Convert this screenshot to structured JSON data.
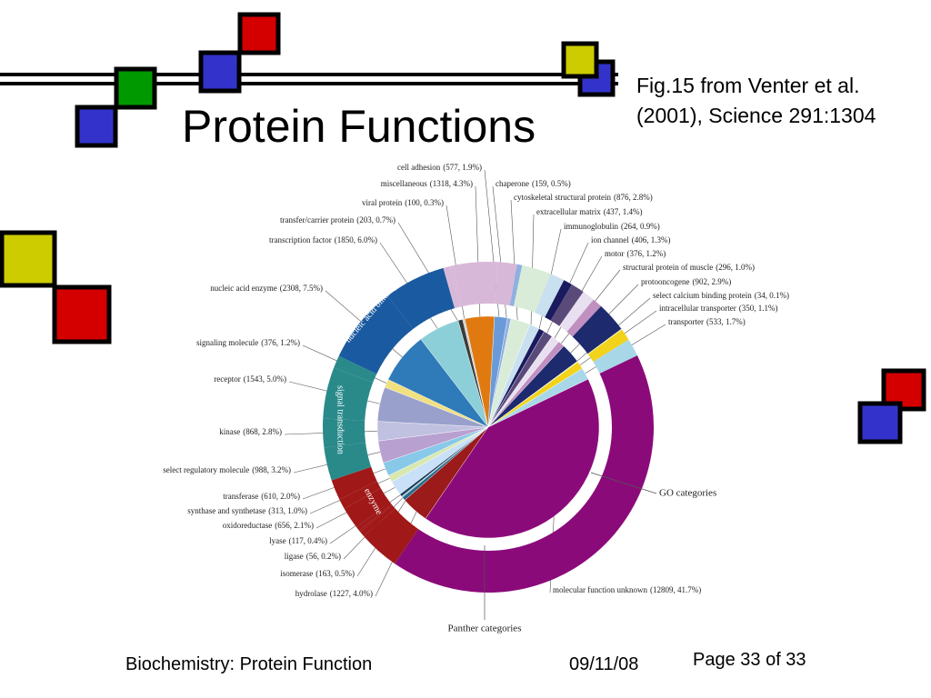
{
  "slide": {
    "title": "Protein Functions",
    "caption": "Fig.15 from Venter et al. (2001), Science 291:1304",
    "footer_left": "Biochemistry: Protein Function",
    "footer_date": "09/11/08",
    "footer_page": "Page 33 of 33"
  },
  "chart_data": {
    "type": "pie",
    "categories": [
      "chaperone",
      "cytoskeletal structural protein",
      "extracellular matrix",
      "immunoglobulin",
      "ion channel",
      "motor",
      "structural protein of muscle",
      "protooncogene",
      "select calcium binding protein",
      "intracellular transporter",
      "transporter",
      "molecular function unknown",
      "hydrolase",
      "isomerase",
      "ligase",
      "lyase",
      "oxidoreductase",
      "synthase and synthetase",
      "transferase",
      "select regulatory molecule",
      "kinase",
      "receptor",
      "signaling molecule",
      "nucleic acid enzyme",
      "transcription factor",
      "transfer/carrier protein",
      "viral protein",
      "miscellaneous",
      "cell adhesion"
    ],
    "values": [
      159,
      876,
      437,
      264,
      406,
      376,
      296,
      902,
      34,
      350,
      533,
      12809,
      1227,
      163,
      56,
      117,
      656,
      313,
      610,
      988,
      868,
      1543,
      376,
      2308,
      1850,
      203,
      100,
      1318,
      577
    ],
    "value_labels": [
      "(159, 0.5%)",
      "(876, 2.8%)",
      "(437, 1.4%)",
      "(264, 0.9%)",
      "(406, 1.3%)",
      "(376, 1.2%)",
      "(296, 1.0%)",
      "(902, 2.9%)",
      "(34, 0.1%)",
      "(350, 1.1%)",
      "(533, 1.7%)",
      "(12809, 41.7%)",
      "(1227, 4.0%)",
      "(163, 0.5%)",
      "(56, 0.2%)",
      "(117, 0.4%)",
      "(656, 2.1%)",
      "(313, 1.0%)",
      "(610, 2.0%)",
      "(988, 3.2%)",
      "(868, 2.8%)",
      "(1543, 5.0%)",
      "(376, 1.2%)",
      "(2308, 7.5%)",
      "(1850, 6.0%)",
      "(203, 0.7%)",
      "(100, 0.3%)",
      "(1318, 4.3%)",
      "(577, 1.9%)"
    ],
    "colors": [
      "#8fb0e0",
      "#d8ecd8",
      "#c8e0f0",
      "#1a1a5e",
      "#5a4a7a",
      "#e8e0f0",
      "#c090c0",
      "#1e2a6e",
      "#f0f0a0",
      "#f2d21a",
      "#a8d8e8",
      "#8b0a7a",
      "#9b1a1a",
      "#2a6a8a",
      "#88c8c8",
      "#1a3a5a",
      "#c8e0f8",
      "#d8e8b0",
      "#88c8e8",
      "#b8a0d0",
      "#c0c0e0",
      "#9aa0cc",
      "#f0e080",
      "#2f7ab8",
      "#8ccfd8",
      "#3a3a3a",
      "#d0d0d0",
      "#e07a10",
      "#6a9ad8"
    ],
    "outer_colors": [
      "#8fb0e0",
      "#d8ecd8",
      "#c8e0f0",
      "#1a1a5e",
      "#5a4a7a",
      "#e8e0f0",
      "#c090c0",
      "#1e2a6e",
      "#f0f0a0",
      "#f2d21a",
      "#a8d8e8",
      "#8b0a7a",
      "#a01818",
      "#a01818",
      "#a01818",
      "#a01818",
      "#a01818",
      "#a01818",
      "#a01818",
      "#2a8a8a",
      "#2a8a8a",
      "#2a8a8a",
      "#2a8a8a",
      "#1a5aa0",
      "#1a5aa0",
      "#d8b8d8",
      "#d8b8d8",
      "#d8b8d8",
      "#d8b8d8"
    ],
    "ring_labels": [
      "nucleic acid binding",
      "signal transduction",
      "enzyme"
    ],
    "annotations": [
      "GO categories",
      "Panther categories"
    ]
  }
}
